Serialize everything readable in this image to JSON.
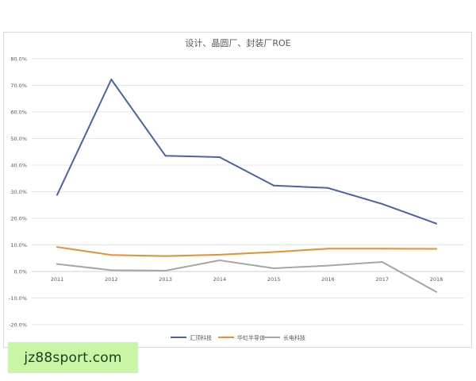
{
  "watermark": {
    "text": "jz88sport.com"
  },
  "chart_data": {
    "type": "line",
    "title": "设计、晶圆厂、封装厂ROE",
    "categories": [
      "2011",
      "2012",
      "2013",
      "2014",
      "2015",
      "2016",
      "2017",
      "2018"
    ],
    "y_ticks": [
      "80.0%",
      "70.0%",
      "60.0%",
      "50.0%",
      "40.0%",
      "30.0%",
      "20.0%",
      "10.0%",
      "0.0%",
      "-10.0%",
      "-20.0%"
    ],
    "ylim": [
      -20,
      80
    ],
    "y_unit": "%",
    "grid": true,
    "legend_position": "bottom",
    "series": [
      {
        "name": "汇顶科技",
        "color": "#4a62a8",
        "values": [
          28.8,
          72.2,
          43.5,
          43.0,
          32.3,
          31.4,
          25.4,
          18.0
        ]
      },
      {
        "name": "华虹半导体",
        "color": "#e8902e",
        "values": [
          9.2,
          6.2,
          5.8,
          6.3,
          7.3,
          8.6,
          8.6,
          8.5
        ]
      },
      {
        "name": "长电科技",
        "color": "#a6a6a6",
        "values": [
          2.8,
          0.5,
          0.3,
          4.2,
          1.2,
          2.2,
          3.6,
          -7.7
        ]
      }
    ]
  }
}
